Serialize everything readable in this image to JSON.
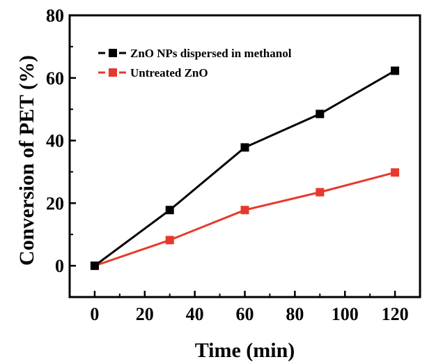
{
  "chart_data": {
    "type": "line",
    "xlabel": "Time (min)",
    "ylabel": "Conversion of PET (%)",
    "xlim": [
      -10,
      130
    ],
    "ylim": [
      -10,
      80
    ],
    "xticks": [
      0,
      20,
      40,
      60,
      80,
      100,
      120
    ],
    "yticks": [
      0,
      20,
      40,
      60,
      80
    ],
    "x": [
      0,
      30,
      60,
      90,
      120
    ],
    "series": [
      {
        "name": "ZnO NPs dispersed in methanol",
        "color": "#000000",
        "values": [
          0,
          17.8,
          37.8,
          48.5,
          62.3
        ]
      },
      {
        "name": "Untreated ZnO",
        "color": "#e8382d",
        "values": [
          0,
          8.2,
          17.8,
          23.5,
          29.8
        ]
      }
    ],
    "legend": "top-left",
    "grid": false,
    "marker": "square"
  }
}
